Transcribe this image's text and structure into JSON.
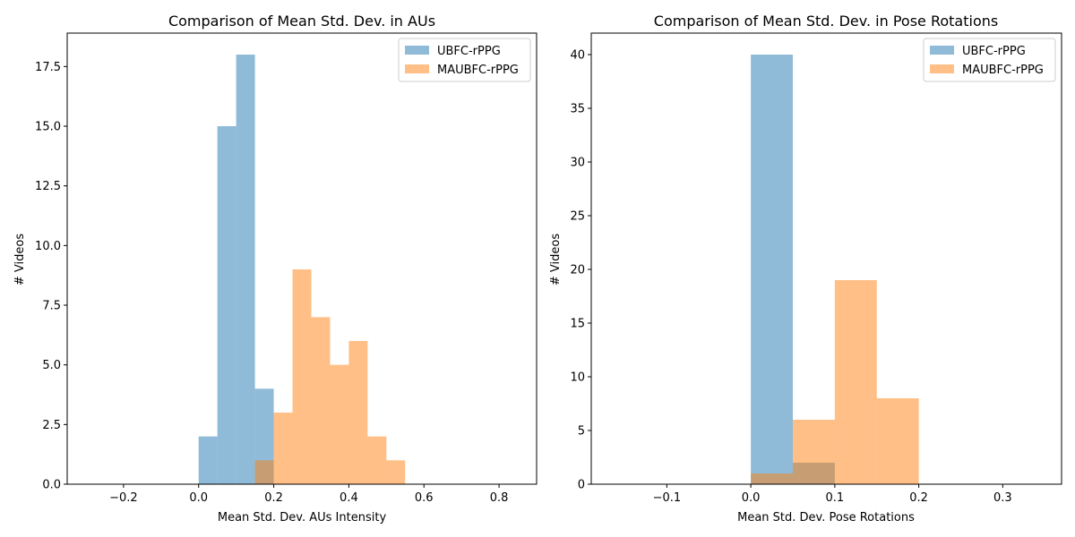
{
  "chart_data": [
    {
      "type": "bar",
      "subtype": "overlapping-histogram",
      "title": "Comparison of Mean Std. Dev. in AUs",
      "xlabel": "Mean Std. Dev. AUs Intensity",
      "ylabel": "# Videos",
      "xlim": [
        -0.35,
        0.9
      ],
      "ylim": [
        0,
        18.9
      ],
      "xticks": [
        -0.2,
        0.0,
        0.2,
        0.4,
        0.6,
        0.8
      ],
      "xtick_labels": [
        "−0.2",
        "0.0",
        "0.2",
        "0.4",
        "0.6",
        "0.8"
      ],
      "yticks": [
        0,
        2.5,
        5,
        7.5,
        10,
        12.5,
        15,
        17.5
      ],
      "ytick_labels": [
        "0.0",
        "2.5",
        "5.0",
        "7.5",
        "10.0",
        "12.5",
        "15.0",
        "17.5"
      ],
      "bin_edges": [
        0.0,
        0.05,
        0.1,
        0.15,
        0.2,
        0.25,
        0.3,
        0.35,
        0.4,
        0.45,
        0.5,
        0.55
      ],
      "series": [
        {
          "name": "UBFC-rPPG",
          "color": "#1f77b4",
          "values": [
            2,
            15,
            18,
            4,
            0,
            0,
            0,
            0,
            0,
            0,
            0
          ]
        },
        {
          "name": "MAUBFC-rPPG",
          "color": "#ff7f0e",
          "values": [
            0,
            0,
            0,
            1,
            3,
            9,
            7,
            5,
            6,
            2,
            1
          ]
        }
      ],
      "grid": false,
      "legend_position": "top-right",
      "alpha": 0.5
    },
    {
      "type": "bar",
      "subtype": "overlapping-histogram",
      "title": "Comparison of Mean Std. Dev. in Pose Rotations",
      "xlabel": "Mean Std. Dev. Pose Rotations",
      "ylabel": "# Videos",
      "xlim": [
        -0.19,
        0.37
      ],
      "ylim": [
        0,
        42
      ],
      "xticks": [
        -0.1,
        0.0,
        0.1,
        0.2,
        0.3
      ],
      "xtick_labels": [
        "−0.1",
        "0.0",
        "0.1",
        "0.2",
        "0.3"
      ],
      "yticks": [
        0,
        5,
        10,
        15,
        20,
        25,
        30,
        35,
        40
      ],
      "ytick_labels": [
        "0",
        "5",
        "10",
        "15",
        "20",
        "25",
        "30",
        "35",
        "40"
      ],
      "bin_edges": [
        0.0,
        0.05,
        0.1,
        0.15,
        0.2
      ],
      "series": [
        {
          "name": "UBFC-rPPG",
          "color": "#1f77b4",
          "values": [
            40,
            2,
            0,
            0
          ]
        },
        {
          "name": "MAUBFC-rPPG",
          "color": "#ff7f0e",
          "values": [
            1,
            6,
            19,
            8
          ]
        }
      ],
      "grid": false,
      "legend_position": "top-right",
      "alpha": 0.5
    }
  ]
}
